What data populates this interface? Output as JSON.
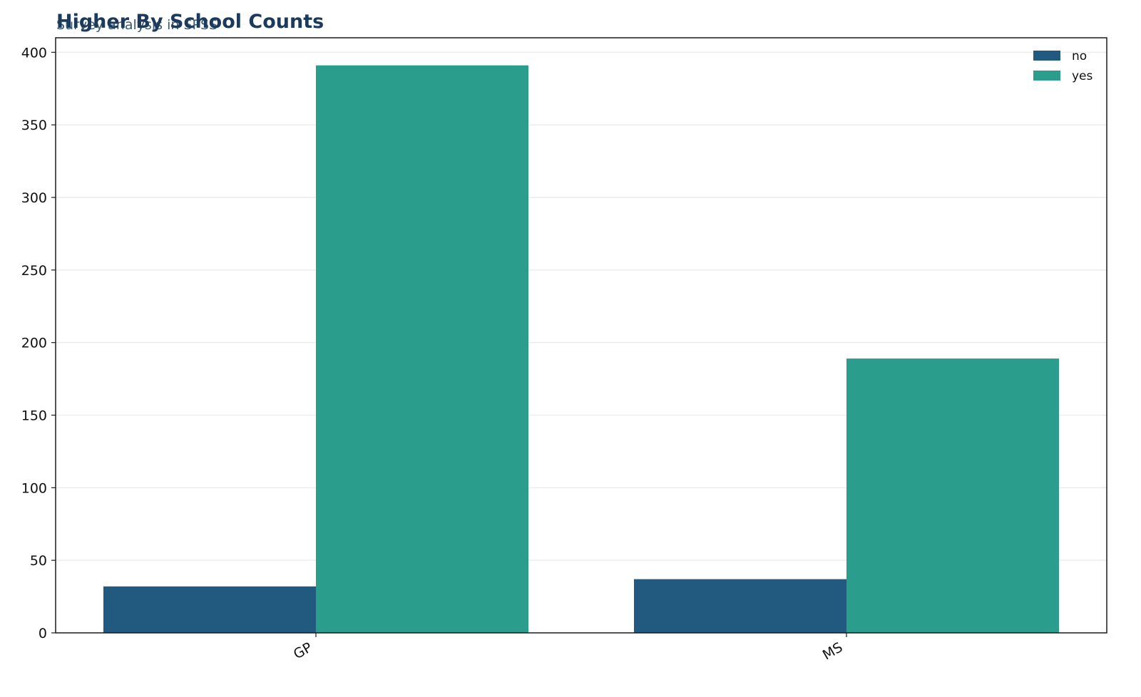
{
  "chart_data": {
    "type": "bar",
    "title": "Higher By School Counts",
    "subtitle": "Survey analysis in SPSS",
    "xlabel": "",
    "ylabel": "",
    "categories": [
      "GP",
      "MS"
    ],
    "series": [
      {
        "name": "no",
        "values": [
          32,
          37
        ],
        "color": "#21597f"
      },
      {
        "name": "yes",
        "values": [
          391,
          189
        ],
        "color": "#2a9d8c"
      }
    ],
    "ylim": [
      0,
      410
    ],
    "yticks": [
      0,
      50,
      100,
      150,
      200,
      250,
      300,
      350,
      400
    ],
    "grid": "y",
    "legend_position": "top-right",
    "colors": {
      "title": "#1b3a5c",
      "subtitle": "#3d5a73",
      "grid": "#ececec",
      "axis": "#1a1a1a"
    }
  }
}
